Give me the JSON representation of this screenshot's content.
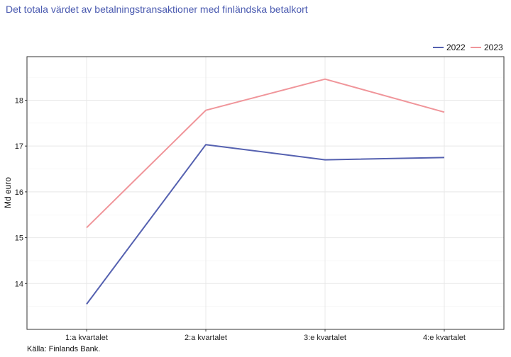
{
  "colors": {
    "title": "#4a5ab0",
    "series_2022": "#5561b0",
    "series_2023": "#f0959a",
    "grid": "#e8e8e8",
    "axis": "#333333"
  },
  "chart_data": {
    "type": "line",
    "title": "Det totala värdet av betalningstransaktioner med finländska betalkort",
    "xlabel": "",
    "ylabel": "Md euro",
    "categories": [
      "1:a kvartalet",
      "2:a kvartalet",
      "3:e kvartalet",
      "4:e kvartalet"
    ],
    "series": [
      {
        "name": "2022",
        "values": [
          13.55,
          17.03,
          16.7,
          16.75
        ]
      },
      {
        "name": "2023",
        "values": [
          15.22,
          17.78,
          18.46,
          17.74
        ]
      }
    ],
    "ylim": [
      13.0,
      18.95
    ],
    "yticks": [
      14,
      15,
      16,
      17,
      18
    ],
    "grid": true,
    "legend_position": "top-right",
    "caption": "Källa: Finlands Bank."
  }
}
